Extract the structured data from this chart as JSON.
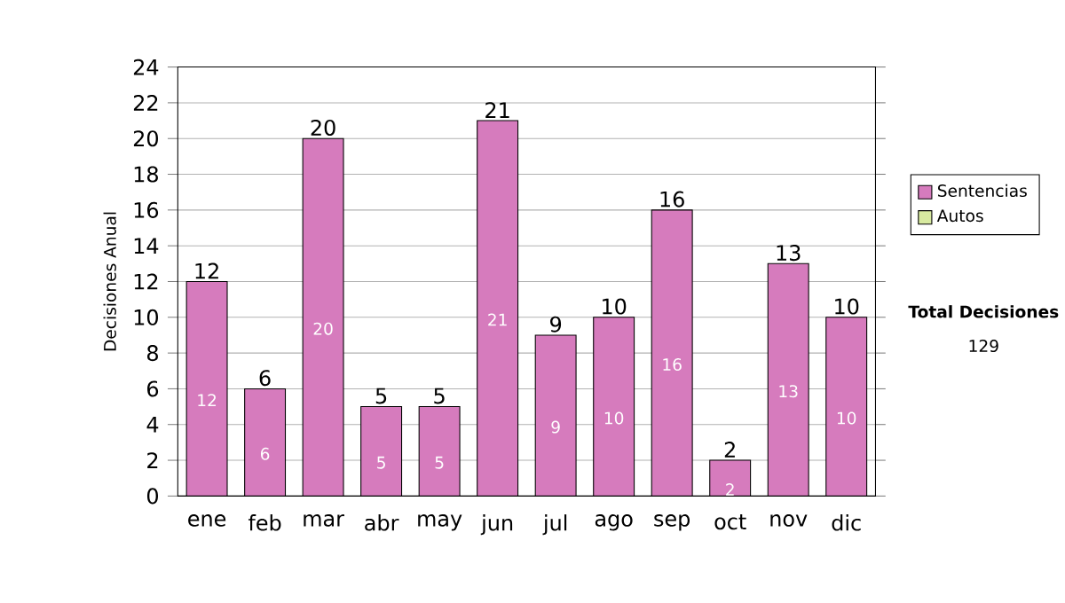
{
  "chart_data": {
    "type": "bar",
    "stacked": true,
    "ylabel": "Decisiones Anual",
    "categories": [
      "ene",
      "feb",
      "mar",
      "abr",
      "may",
      "jun",
      "jul",
      "ago",
      "sep",
      "oct",
      "nov",
      "dic"
    ],
    "series": [
      {
        "name": "Sentencias",
        "color": "#d67bbd",
        "values": [
          12,
          6,
          20,
          5,
          5,
          21,
          9,
          10,
          16,
          2,
          13,
          10
        ]
      },
      {
        "name": "Autos",
        "color": "#d8eaa0",
        "values": [
          null,
          null,
          null,
          null,
          null,
          null,
          null,
          null,
          null,
          null,
          null,
          null
        ]
      }
    ],
    "data_labels": true,
    "totals": [
      "12",
      "6",
      "20",
      "5",
      "5",
      "21",
      "9",
      "10",
      "16",
      "2",
      "13",
      "10"
    ],
    "ylim": [
      0,
      24
    ],
    "yticks": [
      0,
      2,
      4,
      6,
      8,
      10,
      12,
      14,
      16,
      18,
      20,
      22,
      24
    ],
    "grid": "y",
    "legend": "right",
    "annotations": [
      "**Total Decisiones**",
      "129"
    ]
  }
}
